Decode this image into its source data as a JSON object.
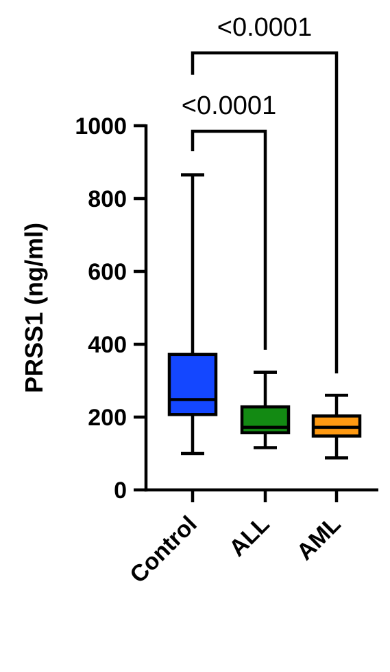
{
  "chart_data": {
    "type": "box",
    "ylabel": "PRSS1 (ng/ml)",
    "xlabel": "",
    "title": "",
    "ylim": [
      0,
      1000
    ],
    "yticks": [
      "0",
      "200",
      "400",
      "600",
      "800",
      "1000"
    ],
    "yticks_values": [
      0,
      200,
      400,
      600,
      800,
      1000
    ],
    "categories": [
      "Control",
      "ALL",
      "AML"
    ],
    "boxes": [
      {
        "category": "Control",
        "min": 100,
        "q1": 207,
        "median": 248,
        "q3": 372,
        "max": 865,
        "color": "#1447ff"
      },
      {
        "category": "ALL",
        "min": 116,
        "q1": 157,
        "median": 172,
        "q3": 228,
        "max": 323,
        "color": "#138a13"
      },
      {
        "category": "AML",
        "min": 88,
        "q1": 148,
        "median": 172,
        "q3": 203,
        "max": 260,
        "color": "#ff9a12"
      }
    ],
    "comparisons": [
      {
        "from": "Control",
        "to": "ALL",
        "label": "<0.0001",
        "bar_y": 985,
        "leg_from_y": 930,
        "leg_to_y": 385
      },
      {
        "from": "Control",
        "to": "AML",
        "label": "<0.0001",
        "bar_y": 1200,
        "leg_from_y": 1140,
        "leg_to_y": 320
      }
    ],
    "grid": false,
    "legend": "none"
  }
}
